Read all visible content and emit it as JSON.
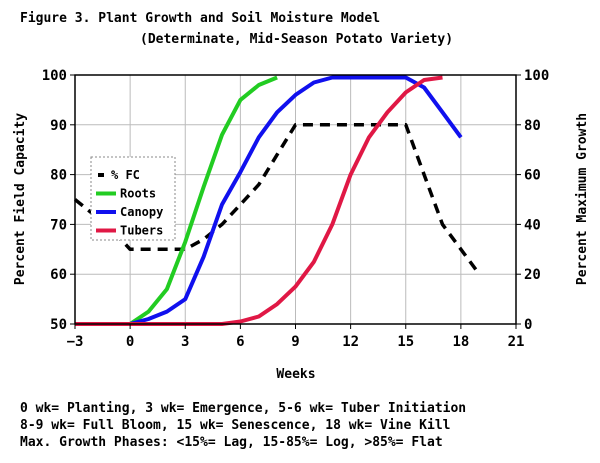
{
  "chart_data": {
    "type": "line",
    "title": "Figure 3. Plant Growth and Soil Moisture Model",
    "subtitle": "(Determinate, Mid-Season Potato Variety)",
    "xlabel": "Weeks",
    "ylabel_left": "Percent Field Capacity",
    "ylabel_right": "Percent Maximum Growth",
    "xlim": [
      -3,
      21
    ],
    "ylim_left": [
      50,
      100
    ],
    "ylim_right": [
      0,
      100
    ],
    "x_ticks": [
      -3,
      0,
      3,
      6,
      9,
      12,
      15,
      18,
      21
    ],
    "y_ticks_left": [
      50,
      60,
      70,
      80,
      90,
      100
    ],
    "y_ticks_right": [
      0,
      20,
      40,
      60,
      80,
      100
    ],
    "legend_position": "middle-left",
    "grid": "horizontal and vertical",
    "series": [
      {
        "name": "% FC",
        "axis": "left",
        "color": "#000000",
        "style": "dashed",
        "x": [
          -3,
          -2,
          -1,
          0,
          1,
          2,
          3,
          4,
          5,
          6,
          7,
          8,
          9,
          10,
          11,
          12,
          13,
          14,
          15,
          16,
          17,
          18,
          19
        ],
        "y": [
          75,
          72,
          69,
          65,
          65,
          65,
          65,
          67,
          70,
          74,
          78,
          84,
          90,
          90,
          90,
          90,
          90,
          90,
          90,
          80,
          70,
          65,
          60
        ]
      },
      {
        "name": "Roots",
        "axis": "right",
        "color": "#22cc22",
        "style": "solid",
        "x": [
          -3,
          0,
          1,
          2,
          3,
          4,
          5,
          6,
          7,
          8
        ],
        "y": [
          0,
          0,
          5,
          14,
          33,
          55,
          76,
          90,
          96,
          99
        ]
      },
      {
        "name": "Canopy",
        "axis": "right",
        "color": "#1010ee",
        "style": "solid",
        "x": [
          -3,
          0,
          1,
          2,
          3,
          4,
          5,
          6,
          7,
          8,
          9,
          10,
          11,
          12,
          13,
          14,
          15,
          16,
          17,
          18
        ],
        "y": [
          0,
          0,
          2,
          5,
          10,
          27,
          48,
          61,
          75,
          85,
          92,
          97,
          99,
          99,
          99,
          99,
          99,
          95,
          85,
          75
        ]
      },
      {
        "name": "Tubers",
        "axis": "right",
        "color": "#e01845",
        "style": "solid",
        "x": [
          -3,
          0,
          3,
          5,
          6,
          7,
          8,
          9,
          10,
          11,
          12,
          13,
          14,
          15,
          16,
          17
        ],
        "y": [
          0,
          0,
          0,
          0,
          1,
          3,
          8,
          15,
          25,
          40,
          60,
          75,
          85,
          93,
          98,
          99
        ]
      }
    ]
  },
  "notes": [
    "0 wk= Planting, 3 wk= Emergence, 5-6 wk= Tuber Initiation",
    "8-9 wk= Full Bloom, 15 wk= Senescence, 18 wk= Vine Kill",
    "Max. Growth Phases: <15%= Lag, 15-85%= Log, >85%= Flat"
  ]
}
